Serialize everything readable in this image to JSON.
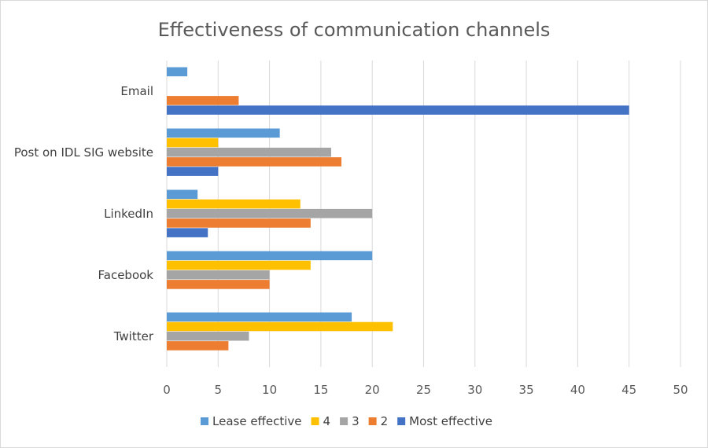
{
  "chart_data": {
    "type": "bar",
    "orientation": "horizontal",
    "title": "Effectiveness of communication channels",
    "categories": [
      "Email",
      "Post on IDL SIG website",
      "LinkedIn",
      "Facebook",
      "Twitter"
    ],
    "series": [
      {
        "name": "Lease effective",
        "color": "#5b9bd5",
        "values": [
          2,
          11,
          3,
          20,
          18
        ]
      },
      {
        "name": "4",
        "color": "#ffc000",
        "values": [
          0,
          5,
          13,
          14,
          22
        ]
      },
      {
        "name": "3",
        "color": "#a5a5a5",
        "values": [
          0,
          16,
          20,
          10,
          8
        ]
      },
      {
        "name": "2",
        "color": "#ed7d31",
        "values": [
          7,
          17,
          14,
          10,
          6
        ]
      },
      {
        "name": "Most effective",
        "color": "#4472c4",
        "values": [
          45,
          5,
          4,
          0,
          0
        ]
      }
    ],
    "xlim": [
      0,
      50
    ],
    "xticks": [
      "0",
      "5",
      "10",
      "15",
      "20",
      "25",
      "30",
      "35",
      "40",
      "45",
      "50"
    ],
    "grid": "vertical",
    "legend_position": "bottom"
  }
}
